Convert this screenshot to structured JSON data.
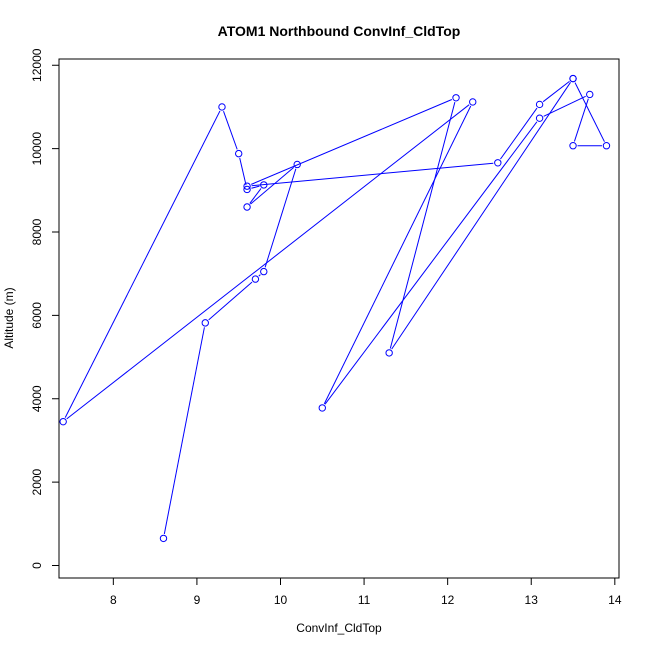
{
  "chart_data": {
    "type": "line",
    "title": "ATOM1 Northbound ConvInf_CldTop",
    "xlabel": "ConvInf_CldTop",
    "ylabel": "Altitude (m)",
    "xlim": [
      7.35,
      14.05
    ],
    "ylim": [
      -300,
      12150
    ],
    "x_ticks": [
      "8",
      "9",
      "10",
      "11",
      "12",
      "13",
      "14"
    ],
    "y_ticks": [
      "0",
      "2000",
      "4000",
      "6000",
      "8000",
      "10000",
      "12000"
    ],
    "grid": false,
    "legend": "none",
    "color": "#0000ff",
    "series": [
      {
        "x": [
          8.6,
          9.1,
          9.7,
          9.8,
          10.2,
          9.6,
          9.8,
          9.6,
          9.5,
          9.3,
          7.4,
          12.3,
          10.5,
          13.1,
          13.7,
          13.5,
          13.9,
          13.5,
          13.1,
          12.6,
          9.6,
          12.1,
          11.3,
          13.5
        ],
        "y": [
          650,
          5820,
          6870,
          7050,
          9620,
          8600,
          9130,
          9020,
          9880,
          11000,
          3450,
          11120,
          3780,
          10730,
          11300,
          10070,
          10070,
          11680,
          11060,
          9660,
          9100,
          11220,
          5100,
          11680
        ]
      }
    ]
  }
}
